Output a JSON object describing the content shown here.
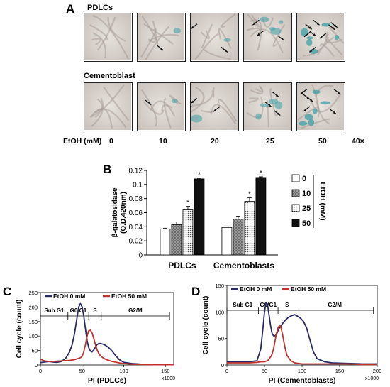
{
  "panel_a": {
    "letter": "A",
    "row1_label": "PDLCs",
    "row2_label": "Cementoblast",
    "ethanol_label": "EtOH (mM)",
    "doses": [
      "0",
      "10",
      "20",
      "25",
      "50"
    ],
    "magnification": "40×",
    "arrow_counts": {
      "pdlcs": [
        0,
        1,
        2,
        3,
        8
      ],
      "cementoblast": [
        0,
        1,
        2,
        3,
        6
      ]
    }
  },
  "chart_data": [
    {
      "id": "panel_b",
      "type": "bar",
      "letter": "B",
      "ylabel": "β-galatosidase\n(O.D.420nm)",
      "categories": [
        "PDLCs",
        "Cementoblasts"
      ],
      "ylim": [
        0,
        0.12
      ],
      "yticks": [
        "0",
        "0.02",
        "0.04",
        "0.06",
        "0.08",
        "0.1",
        "0.12"
      ],
      "legend_title": "EtOH (mM)",
      "series": [
        {
          "name": "0",
          "values": [
            0.037,
            0.039
          ],
          "errors": [
            0.001,
            0.001
          ],
          "fill": "#ffffff"
        },
        {
          "name": "10",
          "values": [
            0.043,
            0.051
          ],
          "errors": [
            0.004,
            0.004
          ],
          "fill": "#8a8a8a"
        },
        {
          "name": "25",
          "values": [
            0.064,
            0.076
          ],
          "errors": [
            0.005,
            0.005
          ],
          "fill": "#d6d6d6"
        },
        {
          "name": "50",
          "values": [
            0.108,
            0.11
          ],
          "errors": [
            0.001,
            0.001
          ],
          "fill": "#111111"
        }
      ],
      "significance": [
        "",
        "",
        "*",
        "*"
      ]
    },
    {
      "id": "panel_c",
      "type": "line",
      "letter": "C",
      "ylabel": "Cell cycle (count)",
      "xlabel": "PI (PDLCs)",
      "xunit": "x1000",
      "xlim": [
        0,
        160
      ],
      "ylim": [
        0,
        250
      ],
      "xticks": [
        "0",
        "50",
        "100",
        "150"
      ],
      "yticks": [
        "0",
        "50",
        "100",
        "150",
        "200",
        "250"
      ],
      "phase_labels": [
        "Sub G1",
        "G0/G1",
        "S",
        "G2/M"
      ],
      "phase_bounds": [
        0,
        33,
        58,
        73,
        155
      ],
      "series": [
        {
          "name": "EtOH 0 mM",
          "color": "#2b2a64",
          "x": [
            0,
            5,
            10,
            15,
            20,
            25,
            30,
            35,
            38,
            41,
            44,
            46,
            48,
            50,
            52,
            54,
            56,
            58,
            60,
            62,
            64,
            66,
            68,
            70,
            72,
            75,
            78,
            82,
            86,
            90,
            95,
            100,
            110,
            120,
            140,
            160
          ],
          "y": [
            8,
            10,
            12,
            10,
            9,
            12,
            22,
            45,
            70,
            110,
            165,
            200,
            212,
            200,
            170,
            125,
            85,
            60,
            48,
            45,
            52,
            62,
            70,
            74,
            74,
            72,
            68,
            60,
            48,
            33,
            18,
            9,
            5,
            3,
            2,
            1
          ]
        },
        {
          "name": "EtOH 50 mM",
          "color": "#c0322d",
          "x": [
            0,
            5,
            10,
            15,
            20,
            25,
            30,
            35,
            40,
            45,
            48,
            50,
            52,
            54,
            56,
            58,
            60,
            62,
            64,
            66,
            68,
            70,
            72,
            75,
            78,
            82,
            86,
            90,
            95,
            100,
            110,
            120,
            140,
            160
          ],
          "y": [
            20,
            14,
            12,
            12,
            13,
            14,
            15,
            16,
            18,
            22,
            25,
            30,
            45,
            70,
            100,
            118,
            120,
            110,
            92,
            70,
            52,
            40,
            32,
            25,
            20,
            16,
            12,
            10,
            7,
            5,
            3,
            2,
            1,
            1
          ]
        }
      ]
    },
    {
      "id": "panel_d",
      "type": "line",
      "letter": "D",
      "ylabel": "Cell cycle (count)",
      "xlabel": "PI (Cementoblasts)",
      "xunit": "x1000",
      "xlim": [
        0,
        200
      ],
      "ylim": [
        0,
        150
      ],
      "xticks": [
        "0",
        "50",
        "100",
        "150",
        "200"
      ],
      "yticks": [
        "0",
        "50",
        "100",
        "150"
      ],
      "phase_labels": [
        "Sub G1",
        "G0/G1",
        "S",
        "G2/M"
      ],
      "phase_bounds": [
        0,
        42,
        68,
        92,
        195
      ],
      "series": [
        {
          "name": "EtOH 0 mM",
          "color": "#2b2a64",
          "x": [
            0,
            10,
            20,
            30,
            40,
            45,
            48,
            50,
            52,
            54,
            56,
            58,
            60,
            62,
            64,
            66,
            68,
            70,
            72,
            75,
            78,
            82,
            86,
            90,
            94,
            98,
            102,
            106,
            110,
            115,
            120,
            130,
            140,
            160,
            180,
            200
          ],
          "y": [
            6,
            6,
            6,
            6,
            8,
            30,
            70,
            100,
            117,
            115,
            95,
            75,
            60,
            55,
            55,
            58,
            65,
            70,
            74,
            80,
            85,
            90,
            93,
            95,
            92,
            88,
            82,
            70,
            50,
            25,
            12,
            6,
            4,
            3,
            2,
            2
          ]
        },
        {
          "name": "EtOH 50 mM",
          "color": "#c0322d",
          "x": [
            0,
            10,
            20,
            30,
            40,
            45,
            50,
            52,
            55,
            58,
            60,
            62,
            64,
            66,
            68,
            70,
            72,
            74,
            76,
            78,
            80,
            85,
            90,
            100,
            110,
            120,
            140,
            160,
            180,
            200
          ],
          "y": [
            4,
            4,
            4,
            4,
            5,
            6,
            6,
            7,
            9,
            15,
            20,
            30,
            45,
            60,
            70,
            74,
            70,
            58,
            42,
            28,
            18,
            8,
            4,
            2,
            2,
            2,
            2,
            2,
            1,
            1
          ]
        }
      ]
    }
  ]
}
